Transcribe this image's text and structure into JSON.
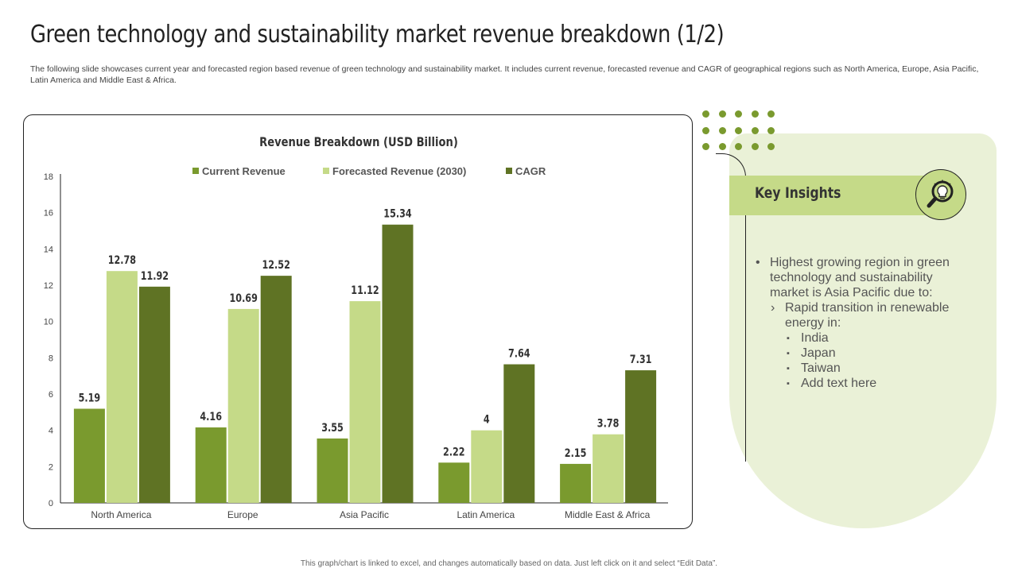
{
  "slide": {
    "title": "Green technology and sustainability market revenue breakdown (1/2)",
    "subtitle": "The following slide showcases current year and forecasted region based revenue of green technology and sustainability market. It includes current revenue, forecasted revenue and CAGR of geographical regions such as North America, Europe, Asia Pacific, Latin America and Middle East & Africa.",
    "footer": "This graph/chart is linked to excel, and changes automatically based on data. Just left click on it and select “Edit Data”."
  },
  "chart_data": {
    "type": "bar",
    "title": "Revenue Breakdown (USD Billion)",
    "categories": [
      "North America",
      "Europe",
      "Asia Pacific",
      "Latin America",
      "Middle East & Africa"
    ],
    "series": [
      {
        "name": "Current Revenue",
        "color": "#7a9a2e",
        "values": [
          5.19,
          4.16,
          3.55,
          2.22,
          2.15
        ]
      },
      {
        "name": "Forecasted Revenue (2030)",
        "color": "#c5da88",
        "values": [
          12.78,
          10.69,
          11.12,
          4,
          3.78
        ]
      },
      {
        "name": "CAGR",
        "color": "#5f7324",
        "values": [
          11.92,
          12.52,
          15.34,
          7.64,
          7.31
        ]
      }
    ],
    "ylim": [
      0,
      18
    ],
    "yticks": [
      0,
      2,
      4,
      6,
      8,
      10,
      12,
      14,
      16,
      18
    ],
    "xlabel": "",
    "ylabel": "",
    "legend": "top-center",
    "grid": false
  },
  "insights": {
    "title": "Key Insights",
    "icon": "lightbulb-magnifier-icon",
    "bullet": "Highest growing region in green technology and sustainability market is Asia Pacific due to:",
    "sub_bullet": "Rapid transition in renewable energy in:",
    "items": [
      "India",
      "Japan",
      "Taiwan",
      "Add text here"
    ]
  },
  "colors": {
    "accent": "#7a9a2e",
    "light": "#c5da88",
    "dark": "#5f7324",
    "panel": "#eaf1d7"
  }
}
